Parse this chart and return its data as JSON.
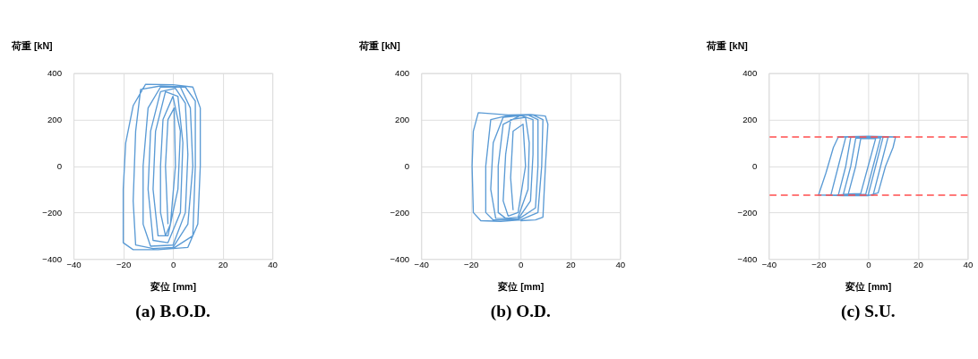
{
  "chart_data": [
    {
      "type": "line",
      "title": "(a) B.O.D.",
      "xlabel": "変位 [mm]",
      "ylabel": "荷重 [kN]",
      "xlim": [
        -40,
        40
      ],
      "ylim": [
        -400,
        400
      ],
      "xticks": [
        -40,
        -20,
        0,
        20,
        40
      ],
      "yticks": [
        -400,
        -200,
        0,
        200,
        400
      ],
      "grid": true,
      "series": [
        {
          "color": "#5b9bd5",
          "x": [
            0,
            6,
            10,
            11,
            11,
            8,
            0,
            -11,
            -16,
            -19,
            -20,
            -20,
            -16,
            -6,
            0,
            8,
            9,
            9,
            5,
            -5,
            -13,
            -15,
            -16,
            -15,
            -8,
            0,
            6,
            8,
            7,
            3,
            -5,
            -10,
            -12,
            -12,
            -9,
            0,
            5,
            6,
            5,
            1,
            -5,
            -9,
            -10,
            -8,
            -2,
            3,
            4,
            2,
            -3,
            -7,
            -8,
            -6,
            -2,
            2,
            3,
            0,
            -4,
            -5,
            -5,
            -3,
            -1,
            1,
            0.5,
            -2,
            -3,
            -2
          ],
          "values": [
            -355,
            -350,
            -250,
            0,
            250,
            340,
            350,
            352,
            260,
            100,
            -100,
            -330,
            -360,
            -360,
            -355,
            -300,
            0,
            280,
            340,
            345,
            330,
            150,
            -150,
            -340,
            -355,
            -350,
            -250,
            0,
            250,
            340,
            340,
            250,
            0,
            -250,
            -345,
            -340,
            -200,
            50,
            270,
            335,
            320,
            150,
            -100,
            -320,
            -330,
            -200,
            100,
            300,
            320,
            150,
            -100,
            -300,
            -300,
            -100,
            150,
            300,
            200,
            0,
            -200,
            -300,
            -250,
            0,
            250,
            200,
            0,
            -250
          ]
        }
      ]
    },
    {
      "type": "line",
      "title": "(b) O.D.",
      "xlabel": "変位 [mm]",
      "ylabel": "荷重 [kN]",
      "xlim": [
        -40,
        40
      ],
      "ylim": [
        -400,
        400
      ],
      "xticks": [
        -40,
        -20,
        0,
        20,
        40
      ],
      "yticks": [
        -400,
        -200,
        0,
        200,
        400
      ],
      "grid": true,
      "series": [
        {
          "color": "#5b9bd5",
          "x": [
            0,
            6,
            9,
            10,
            11,
            10,
            4,
            -5,
            -17,
            -19,
            -19.5,
            -19,
            -16,
            -8,
            0,
            7,
            8.5,
            9,
            5,
            -6,
            -12,
            -14,
            -14,
            -11,
            -1,
            6,
            7,
            7,
            3,
            -7,
            -11,
            -12,
            -10,
            -1,
            4,
            5,
            5,
            0,
            -7,
            -9,
            -9,
            -6,
            -1,
            3,
            3.5,
            2,
            -4,
            -6,
            -7,
            -5,
            -1,
            2,
            1,
            -3,
            -4,
            -3
          ],
          "values": [
            -235,
            -232,
            -220,
            0,
            180,
            215,
            222,
            220,
            230,
            150,
            0,
            -200,
            -235,
            -238,
            -232,
            -200,
            0,
            200,
            220,
            215,
            200,
            0,
            -200,
            -232,
            -230,
            -180,
            0,
            200,
            220,
            210,
            100,
            -100,
            -225,
            -228,
            -150,
            50,
            200,
            218,
            180,
            0,
            -200,
            -225,
            -220,
            -100,
            100,
            210,
            200,
            50,
            -150,
            -215,
            -200,
            0,
            180,
            150,
            -50,
            -190
          ]
        }
      ]
    },
    {
      "type": "line",
      "title": "(c) S.U.",
      "xlabel": "変位 [mm]",
      "ylabel": "荷重 [kN]",
      "xlim": [
        -40,
        40
      ],
      "ylim": [
        -400,
        400
      ],
      "xticks": [
        -40,
        -20,
        0,
        20,
        40
      ],
      "yticks": [
        -400,
        -200,
        0,
        200,
        400
      ],
      "grid": true,
      "ref_lines": [
        {
          "axis": "y",
          "value": 125,
          "color": "#ff4d4d",
          "line_style": "dashed"
        },
        {
          "axis": "y",
          "value": -125,
          "color": "#ff4d4d",
          "line_style": "dashed"
        }
      ],
      "series": [
        {
          "color": "#5b9bd5",
          "x": [
            -20,
            -17,
            -14,
            -12,
            0,
            11,
            10,
            7,
            4,
            0,
            -10,
            -20,
            -15,
            -12,
            -9,
            8,
            5,
            2,
            -15,
            -12,
            -9,
            -7,
            6,
            3,
            0,
            -12,
            -10,
            -7,
            -5,
            5,
            2,
            -1,
            -10,
            -8,
            -5,
            -3,
            3,
            0,
            -3,
            -8
          ],
          "values": [
            -125,
            -30,
            80,
            125,
            128,
            125,
            80,
            0,
            -115,
            -128,
            -128,
            -125,
            -125,
            0,
            125,
            125,
            0,
            -125,
            -125,
            -125,
            0,
            125,
            125,
            0,
            -125,
            -125,
            -122,
            0,
            120,
            122,
            0,
            -122,
            -122,
            -120,
            0,
            118,
            118,
            0,
            -118,
            -120
          ]
        }
      ]
    }
  ]
}
